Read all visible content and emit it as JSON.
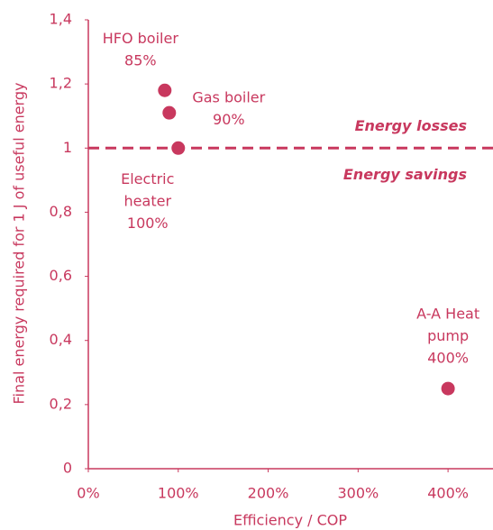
{
  "chart_data": {
    "type": "scatter",
    "xlabel": "Efficiency / COP",
    "ylabel": "Final energy required for 1 J of useful energy",
    "color": "#c8385e",
    "x": [
      85,
      90,
      100,
      400
    ],
    "values": [
      1.18,
      1.11,
      1,
      0.25
    ],
    "point_labels": [
      [
        "HFO boiler",
        "85%"
      ],
      [
        "Gas boiler",
        "90%"
      ],
      [
        "Electric",
        "heater",
        "100%"
      ],
      [
        "A-A Heat",
        "pump",
        "400%"
      ]
    ],
    "xlim": [
      0,
      450
    ],
    "ylim": [
      0,
      1.4
    ],
    "xticks": [
      {
        "value": 0,
        "label": "0%"
      },
      {
        "value": 100,
        "label": "100%"
      },
      {
        "value": 200,
        "label": "200%"
      },
      {
        "value": 300,
        "label": "300%"
      },
      {
        "value": 400,
        "label": "400%"
      }
    ],
    "yticks": [
      0,
      {
        "value": 0.2,
        "label": "0,2"
      },
      {
        "value": 0.4,
        "label": "0,4"
      },
      {
        "value": 0.6,
        "label": "0,6"
      },
      {
        "value": 0.8,
        "label": "0,8"
      },
      1,
      {
        "value": 1.2,
        "label": "1,2"
      },
      {
        "value": 1.4,
        "label": "1,4"
      }
    ],
    "hline": 1,
    "hline_labels": [
      "Energy losses",
      "Energy savings"
    ]
  }
}
